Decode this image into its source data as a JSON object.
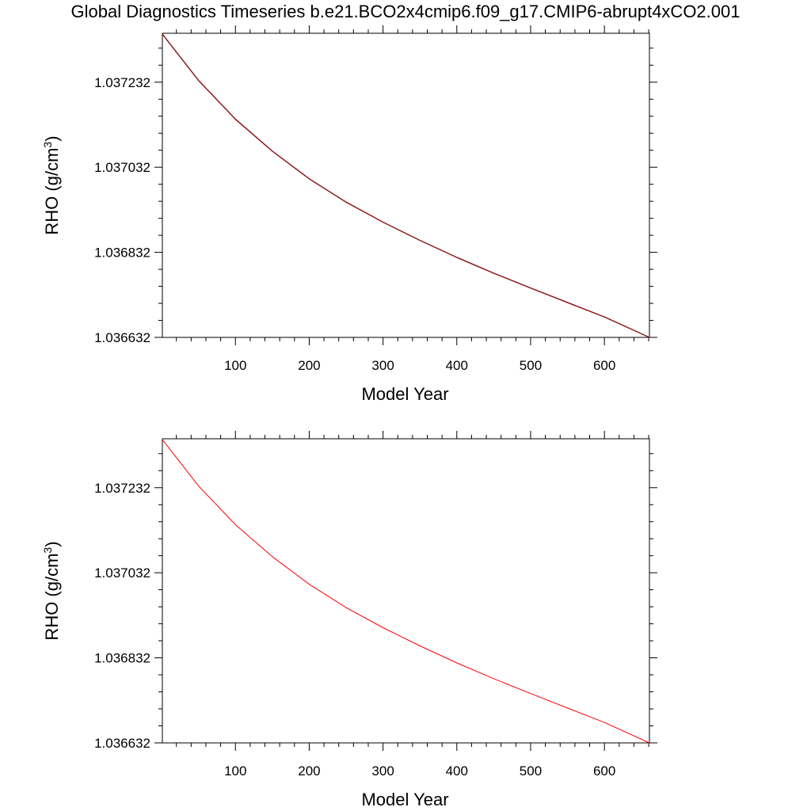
{
  "title": "Global Diagnostics Timeseries b.e21.BCO2x4cmip6.f09_g17.CMIP6-abrupt4xCO2.001",
  "chart_data": [
    {
      "type": "line",
      "xlabel": "Model Year",
      "ylabel_main": "RHO (g/cm",
      "ylabel_sup": "3",
      "ylabel_close": ")",
      "xlim": [
        1,
        661
      ],
      "ylim": [
        1.036632,
        1.037347
      ],
      "xticks": [
        100,
        200,
        300,
        400,
        500,
        600
      ],
      "xtick_labels": [
        "100",
        "200",
        "300",
        "400",
        "500",
        "600"
      ],
      "yticks": [
        1.036632,
        1.036832,
        1.037032,
        1.037232
      ],
      "ytick_labels": [
        "1.036632",
        "1.036832",
        "1.037032",
        "1.037232"
      ],
      "series": [
        {
          "color": "#8b1a1a",
          "x": [
            1,
            50,
            100,
            150,
            200,
            250,
            300,
            350,
            400,
            450,
            500,
            550,
            600,
            661
          ],
          "y": [
            1.037345,
            1.037236,
            1.037145,
            1.03707,
            1.037005,
            1.03695,
            1.036903,
            1.03686,
            1.03682,
            1.036783,
            1.036748,
            1.036714,
            1.03668,
            1.036632
          ]
        }
      ]
    },
    {
      "type": "line",
      "xlabel": "Model Year",
      "ylabel_main": "RHO (g/cm",
      "ylabel_sup": "3",
      "ylabel_close": ")",
      "xlim": [
        1,
        661
      ],
      "ylim": [
        1.036632,
        1.037347
      ],
      "xticks": [
        100,
        200,
        300,
        400,
        500,
        600
      ],
      "xtick_labels": [
        "100",
        "200",
        "300",
        "400",
        "500",
        "600"
      ],
      "yticks": [
        1.036632,
        1.036832,
        1.037032,
        1.037232
      ],
      "ytick_labels": [
        "1.036632",
        "1.036832",
        "1.037032",
        "1.037232"
      ],
      "series": [
        {
          "color": "#ff0000",
          "x": [
            1,
            50,
            100,
            150,
            200,
            250,
            300,
            350,
            400,
            450,
            500,
            550,
            600,
            661
          ],
          "y": [
            1.037345,
            1.037236,
            1.037145,
            1.03707,
            1.037005,
            1.03695,
            1.036903,
            1.03686,
            1.03682,
            1.036783,
            1.036748,
            1.036714,
            1.03668,
            1.036632
          ]
        }
      ]
    }
  ]
}
